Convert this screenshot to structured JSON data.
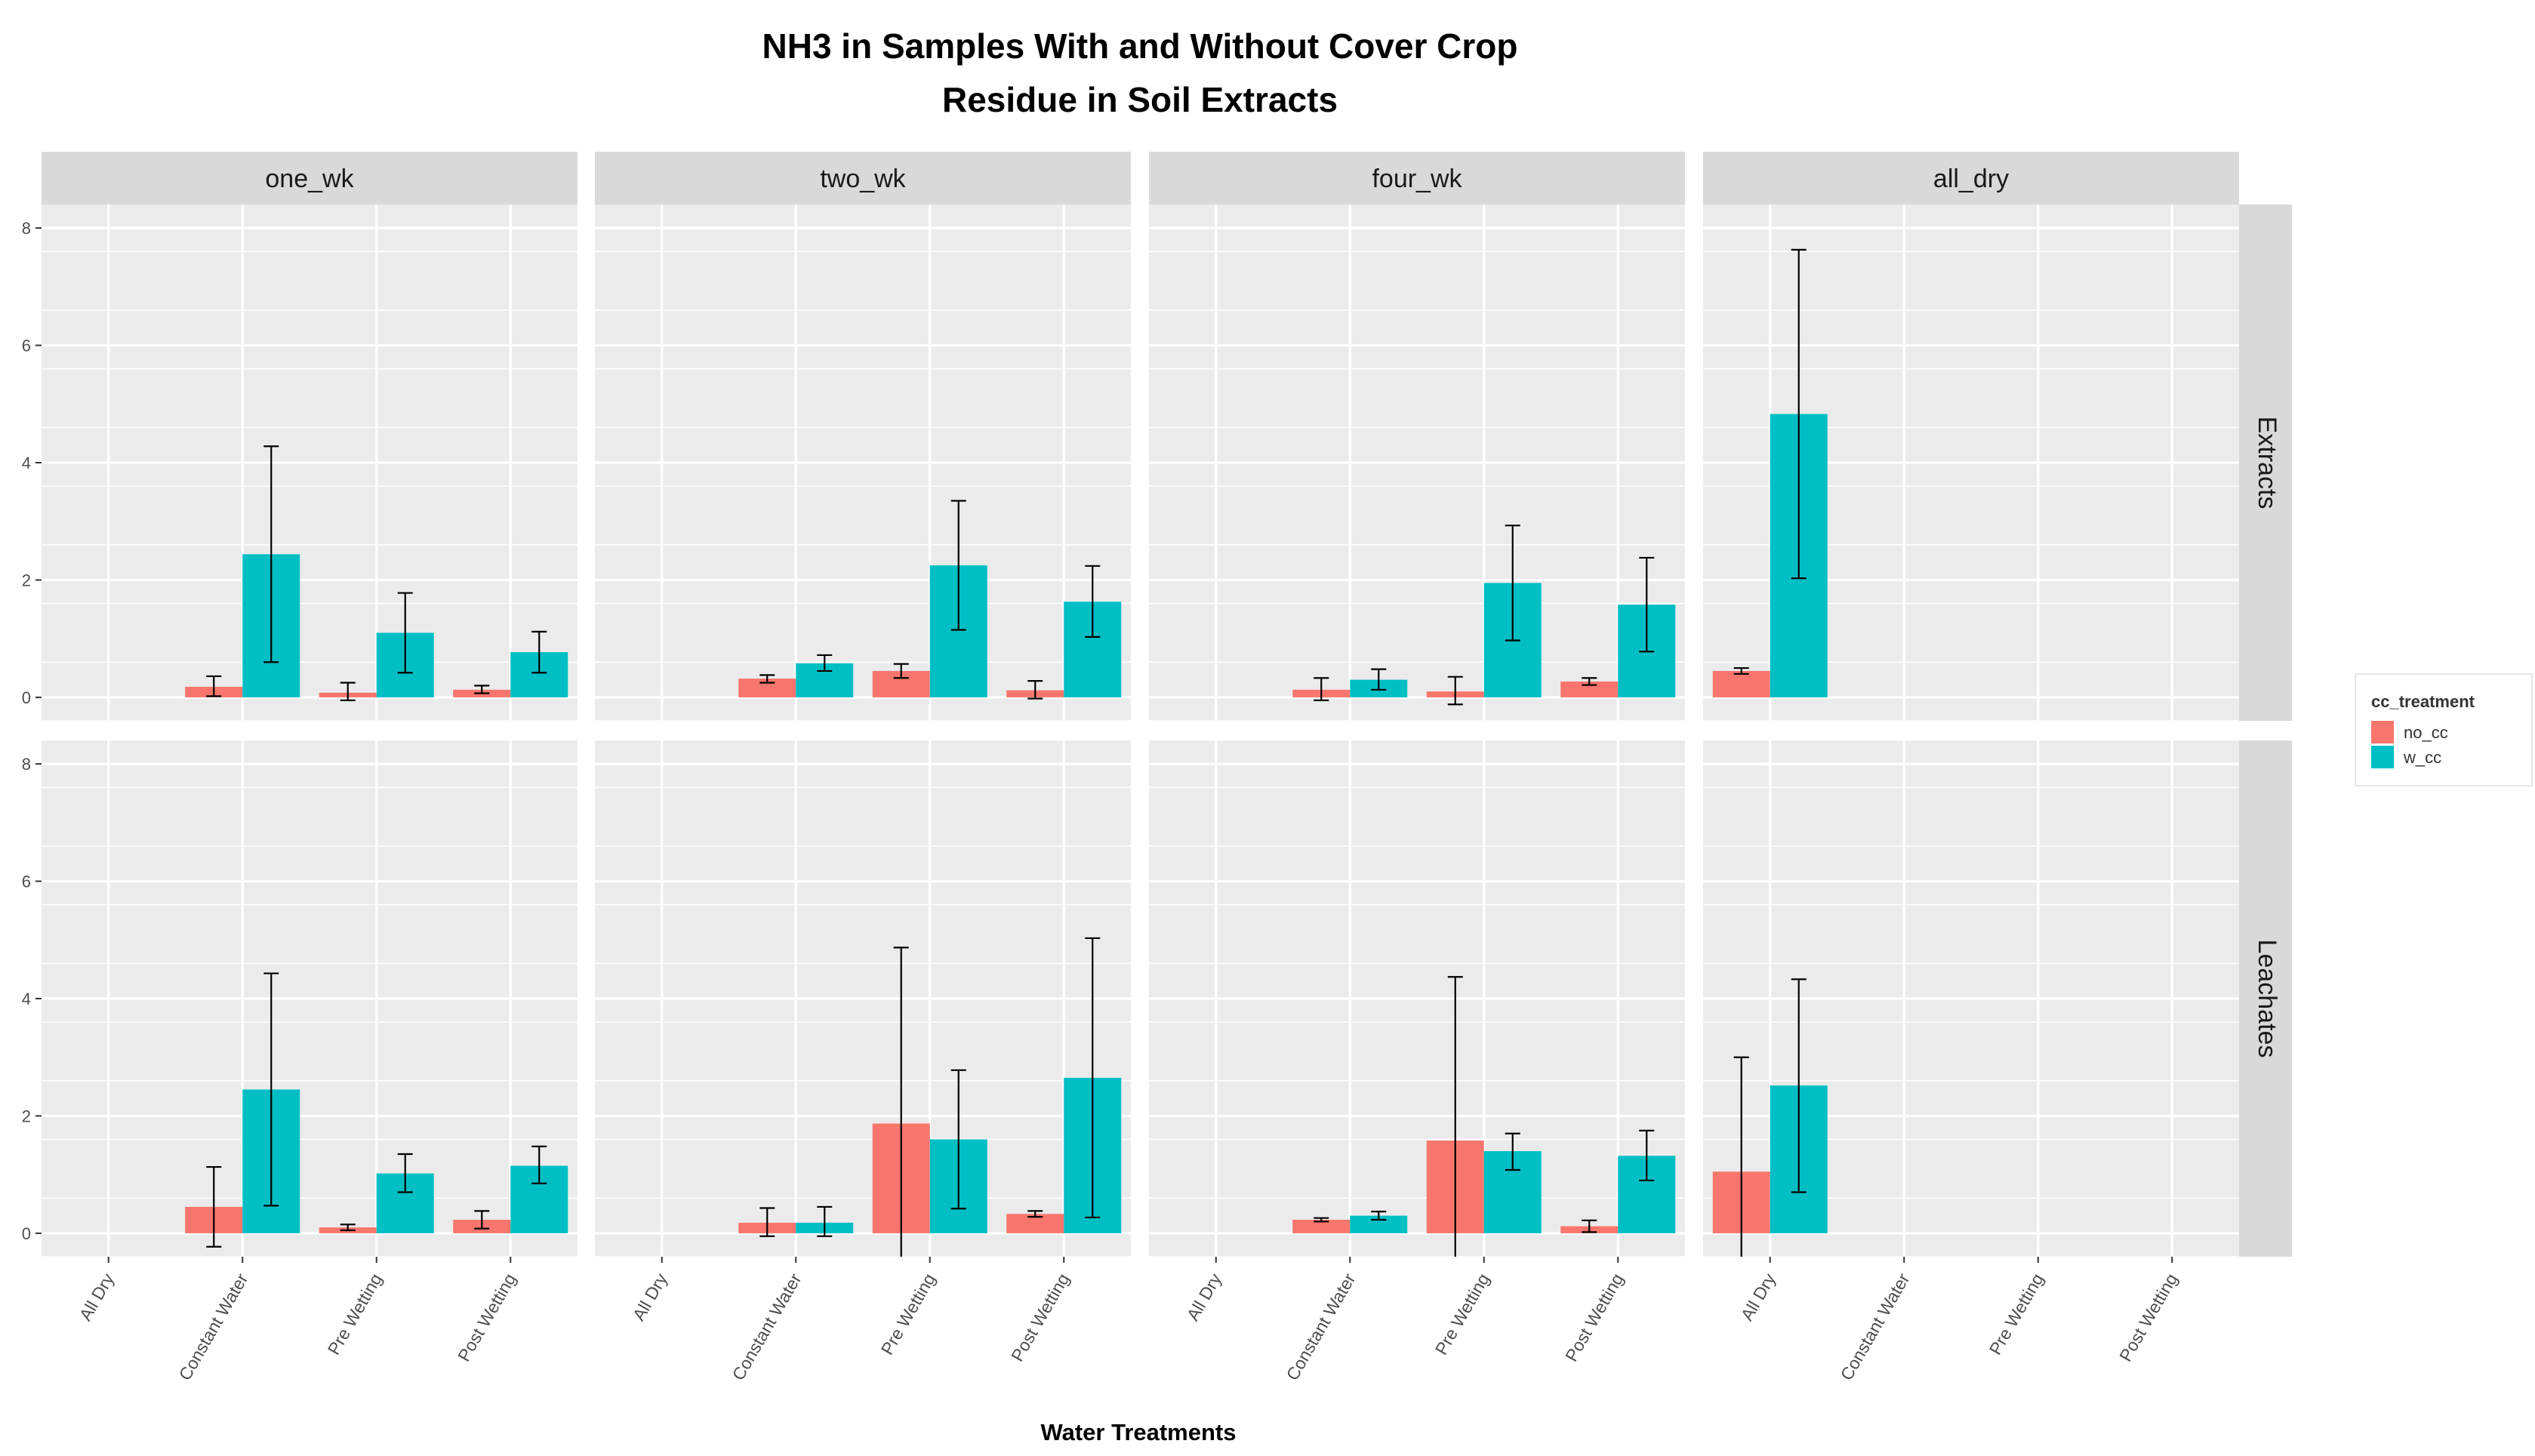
{
  "chart_data": {
    "type": "bar",
    "title_lines": [
      "NH3 in Samples With and Without Cover Crop",
      "Residue in Soil Extracts"
    ],
    "xlabel": "Water Treatments",
    "ylabel": "",
    "ylim": [
      -0.4,
      8.4
    ],
    "yticks": [
      0,
      2,
      4,
      6,
      8
    ],
    "categories": [
      "All Dry",
      "Constant Water",
      "Pre Wetting",
      "Post Wetting"
    ],
    "columns": [
      "one_wk",
      "two_wk",
      "four_wk",
      "all_dry"
    ],
    "rows": [
      "Extracts",
      "Leachates"
    ],
    "legend": {
      "title": "cc_treatment",
      "placement": "right",
      "entries": [
        {
          "name": "no_cc",
          "color": "#F8766D"
        },
        {
          "name": "w_cc",
          "color": "#00BFC4"
        }
      ]
    },
    "panels": [
      {
        "row": "Extracts",
        "col": "one_wk",
        "series": [
          {
            "name": "no_cc",
            "values": [
              null,
              0.18,
              0.08,
              0.13
            ],
            "err_low": [
              null,
              0.02,
              -0.05,
              0.07
            ],
            "err_high": [
              null,
              0.36,
              0.25,
              0.2
            ]
          },
          {
            "name": "w_cc",
            "values": [
              null,
              2.44,
              1.1,
              0.77
            ],
            "err_low": [
              null,
              0.6,
              0.42,
              0.42
            ],
            "err_high": [
              null,
              4.28,
              1.78,
              1.12
            ]
          }
        ]
      },
      {
        "row": "Extracts",
        "col": "two_wk",
        "series": [
          {
            "name": "no_cc",
            "values": [
              null,
              0.32,
              0.45,
              0.12
            ],
            "err_low": [
              null,
              0.25,
              0.33,
              -0.02
            ],
            "err_high": [
              null,
              0.38,
              0.57,
              0.28
            ]
          },
          {
            "name": "w_cc",
            "values": [
              null,
              0.58,
              2.25,
              1.63
            ],
            "err_low": [
              null,
              0.45,
              1.15,
              1.03
            ],
            "err_high": [
              null,
              0.72,
              3.35,
              2.24
            ]
          }
        ]
      },
      {
        "row": "Extracts",
        "col": "four_wk",
        "series": [
          {
            "name": "no_cc",
            "values": [
              null,
              0.13,
              0.1,
              0.27
            ],
            "err_low": [
              null,
              -0.05,
              -0.12,
              0.21
            ],
            "err_high": [
              null,
              0.33,
              0.35,
              0.33
            ]
          },
          {
            "name": "w_cc",
            "values": [
              null,
              0.3,
              1.95,
              1.58
            ],
            "err_low": [
              null,
              0.13,
              0.97,
              0.78
            ],
            "err_high": [
              null,
              0.48,
              2.93,
              2.38
            ]
          }
        ]
      },
      {
        "row": "Extracts",
        "col": "all_dry",
        "series": [
          {
            "name": "no_cc",
            "values": [
              0.45,
              null,
              null,
              null
            ],
            "err_low": [
              0.4,
              null,
              null,
              null
            ],
            "err_high": [
              0.5,
              null,
              null,
              null
            ]
          },
          {
            "name": "w_cc",
            "values": [
              4.83,
              null,
              null,
              null
            ],
            "err_low": [
              2.03,
              null,
              null,
              null
            ],
            "err_high": [
              7.63,
              null,
              null,
              null
            ]
          }
        ]
      },
      {
        "row": "Leachates",
        "col": "one_wk",
        "series": [
          {
            "name": "no_cc",
            "values": [
              null,
              0.45,
              0.1,
              0.23
            ],
            "err_low": [
              null,
              -0.23,
              0.05,
              0.08
            ],
            "err_high": [
              null,
              1.13,
              0.15,
              0.38
            ]
          },
          {
            "name": "w_cc",
            "values": [
              null,
              2.45,
              1.02,
              1.15
            ],
            "err_low": [
              null,
              0.47,
              0.7,
              0.85
            ],
            "err_high": [
              null,
              4.43,
              1.35,
              1.48
            ]
          }
        ]
      },
      {
        "row": "Leachates",
        "col": "two_wk",
        "series": [
          {
            "name": "no_cc",
            "values": [
              null,
              0.18,
              1.87,
              0.33
            ],
            "err_low": [
              null,
              -0.05,
              -1.15,
              0.28
            ],
            "err_high": [
              null,
              0.43,
              4.87,
              0.38
            ]
          },
          {
            "name": "w_cc",
            "values": [
              null,
              0.18,
              1.6,
              2.65
            ],
            "err_low": [
              null,
              -0.05,
              0.42,
              0.27
            ],
            "err_high": [
              null,
              0.45,
              2.78,
              5.03
            ]
          }
        ]
      },
      {
        "row": "Leachates",
        "col": "four_wk",
        "series": [
          {
            "name": "no_cc",
            "values": [
              null,
              0.23,
              1.58,
              0.12
            ],
            "err_low": [
              null,
              0.2,
              -1.2,
              0.02
            ],
            "err_high": [
              null,
              0.26,
              4.37,
              0.22
            ]
          },
          {
            "name": "w_cc",
            "values": [
              null,
              0.3,
              1.4,
              1.32
            ],
            "err_low": [
              null,
              0.23,
              1.08,
              0.9
            ],
            "err_high": [
              null,
              0.37,
              1.7,
              1.75
            ]
          }
        ]
      },
      {
        "row": "Leachates",
        "col": "all_dry",
        "series": [
          {
            "name": "no_cc",
            "values": [
              1.05,
              null,
              null,
              null
            ],
            "err_low": [
              -0.9,
              null,
              null,
              null
            ],
            "err_high": [
              3.0,
              null,
              null,
              null
            ]
          },
          {
            "name": "w_cc",
            "values": [
              2.52,
              null,
              null,
              null
            ],
            "err_low": [
              0.7,
              null,
              null,
              null
            ],
            "err_high": [
              4.33,
              null,
              null,
              null
            ]
          }
        ]
      }
    ]
  }
}
